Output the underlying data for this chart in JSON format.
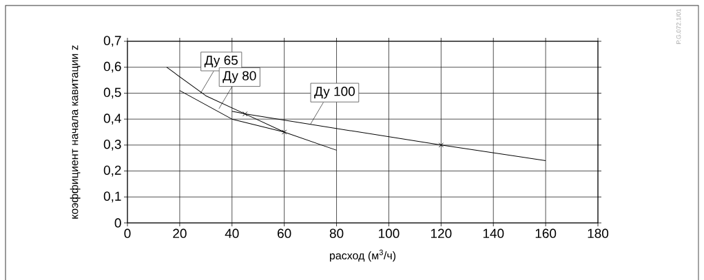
{
  "chart_data": {
    "type": "line",
    "xlabel": "расход (м$^{3}$/ч)",
    "ylabel": "коэффициент начала кавитации z",
    "xlim": [
      0,
      180
    ],
    "ylim": [
      0,
      0.7
    ],
    "xticks": [
      0,
      20,
      40,
      60,
      80,
      100,
      120,
      140,
      160,
      180
    ],
    "yticks": [
      0,
      {
        "value": 0.1,
        "label": "0,1"
      },
      {
        "value": 0.2,
        "label": "0,2"
      },
      {
        "value": 0.3,
        "label": "0,3"
      },
      {
        "value": 0.4,
        "label": "0,4"
      },
      {
        "value": 0.5,
        "label": "0,5"
      },
      {
        "value": 0.6,
        "label": "0,6"
      },
      {
        "value": 0.7,
        "label": "0,7"
      }
    ],
    "grid": true,
    "series": [
      {
        "color": "#000000",
        "x": [
          15,
          30,
          45,
          60
        ],
        "values": [
          0.6,
          0.49,
          0.42,
          0.35
        ]
      },
      {
        "color": "#000000",
        "x": [
          20,
          40,
          60,
          80
        ],
        "values": [
          0.51,
          0.4,
          0.35,
          0.28
        ]
      },
      {
        "color": "#000000",
        "x": [
          40,
          45,
          120,
          160
        ],
        "values": [
          0.43,
          0.42,
          0.3,
          0.24
        ]
      },
      {
        "type": "scatter",
        "marker": "cross",
        "color": "#000000",
        "x": [
          45,
          60,
          120
        ],
        "values": [
          0.42,
          0.35,
          0.3
        ]
      }
    ],
    "annotations": [
      {
        "text": "Ду 65",
        "x": 28,
        "y": 0.5
      },
      {
        "text": "Ду 80",
        "x": 35,
        "y": 0.44
      },
      {
        "text": "Ду 100",
        "x": 70,
        "y": 0.38
      },
      "P.G.072.1/01"
    ]
  }
}
